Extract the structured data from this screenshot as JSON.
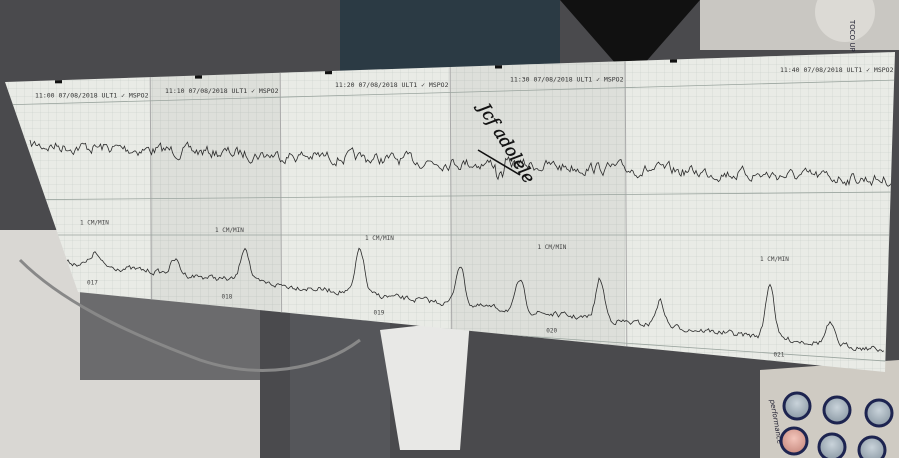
{
  "strip": {
    "panels": [
      {
        "header": "11:00 07/08/2018  ULT1 ✓ MSPO2",
        "speed": "1 CM/MIN",
        "page": "017"
      },
      {
        "header": "11:10 07/08/2018  ULT1 ✓ MSPO2",
        "speed": "1 CM/MIN",
        "page": "018"
      },
      {
        "header": "11:20 07/08/2018  ULT1 ✓ MSPO2",
        "speed": "1 CM/MIN",
        "page": "019"
      },
      {
        "header": "11:30 07/08/2018  ULT1 ✓ MSPO2",
        "speed": "1 CM/MIN",
        "page": "020"
      },
      {
        "header": "11:40 07/08/2018  ULT1 ✓ MSPO2",
        "speed": "1 CM/MIN",
        "page": "021"
      }
    ],
    "handwriting": "Jcf adolele",
    "paper_color": "#e9ebe6",
    "grid_color": "#b9c2bc",
    "trace_color": "#2a2a2a"
  },
  "device": {
    "toco_button_label": "TOCO UP",
    "brand": "performance",
    "button_color": "#9fb0bd",
    "active_button_color": "#e4a59a"
  }
}
